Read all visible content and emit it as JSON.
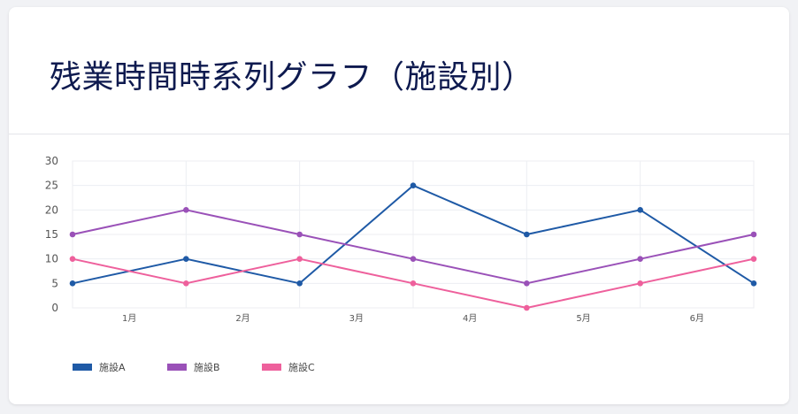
{
  "title": "残業時間時系列グラフ（施設別）",
  "chart_data": {
    "type": "line",
    "title": "残業時間時系列グラフ（施設別）",
    "x": [
      0,
      1,
      2,
      3,
      4,
      5,
      6
    ],
    "xtick_labels": [
      "1月",
      "2月",
      "3月",
      "4月",
      "5月",
      "6月"
    ],
    "xlim": [
      0,
      6
    ],
    "ylim": [
      0,
      30
    ],
    "yticks": [
      0,
      5,
      10,
      15,
      20,
      25,
      30
    ],
    "grid": true,
    "legend_position": "bottom-left",
    "series": [
      {
        "name": "施設A",
        "color": "#1f5aa6",
        "values": [
          5,
          10,
          5,
          25,
          15,
          20,
          5
        ]
      },
      {
        "name": "施設B",
        "color": "#9a51b8",
        "values": [
          15,
          20,
          15,
          10,
          5,
          10,
          15
        ]
      },
      {
        "name": "施設C",
        "color": "#ee609c",
        "values": [
          10,
          5,
          10,
          5,
          0,
          5,
          10
        ]
      }
    ]
  }
}
